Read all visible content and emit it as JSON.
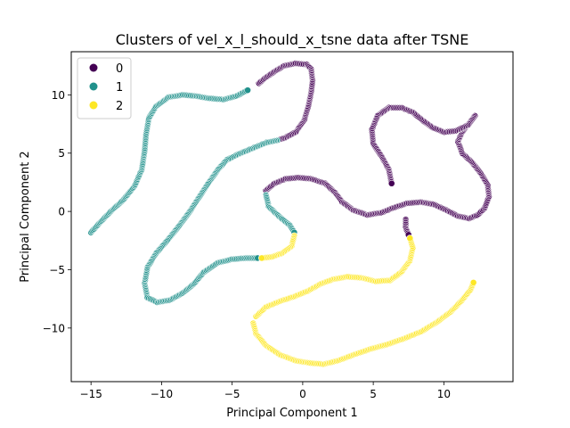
{
  "chart_data": {
    "type": "scatter",
    "title": "Clusters of vel_x_l_should_x_tsne data after TSNE",
    "xlabel": "Principal Component 1",
    "ylabel": "Principal Component 2",
    "xlim": [
      -16.4,
      14.9
    ],
    "ylim": [
      -14.6,
      13.7
    ],
    "xticks": [
      -15,
      -10,
      -5,
      0,
      5,
      10
    ],
    "yticks": [
      -10,
      -5,
      0,
      5,
      10
    ],
    "grid": false,
    "legend_position": "top-left",
    "series": [
      {
        "name": "0",
        "color": "#440154",
        "points": [
          [
            -3.1,
            11.0
          ],
          [
            -2.6,
            11.5
          ],
          [
            -2.0,
            12.0
          ],
          [
            -1.3,
            12.5
          ],
          [
            -0.5,
            12.7
          ],
          [
            0.3,
            12.6
          ],
          [
            0.6,
            12.2
          ],
          [
            0.7,
            11.2
          ],
          [
            0.6,
            10.2
          ],
          [
            0.4,
            9.0
          ],
          [
            0.1,
            7.8
          ],
          [
            -0.5,
            6.8
          ],
          [
            -1.3,
            6.3
          ],
          [
            -2.1,
            6.0
          ],
          [
            -2.6,
            1.8
          ],
          [
            -2.0,
            2.4
          ],
          [
            -1.2,
            2.8
          ],
          [
            -0.3,
            2.9
          ],
          [
            0.6,
            2.8
          ],
          [
            1.6,
            2.4
          ],
          [
            2.3,
            1.6
          ],
          [
            2.8,
            0.8
          ],
          [
            3.6,
            0.1
          ],
          [
            4.6,
            -0.3
          ],
          [
            5.6,
            -0.1
          ],
          [
            6.4,
            0.3
          ],
          [
            7.4,
            0.7
          ],
          [
            8.4,
            0.8
          ],
          [
            9.3,
            0.6
          ],
          [
            10.2,
            0.1
          ],
          [
            11.0,
            -0.4
          ],
          [
            11.8,
            -0.6
          ],
          [
            12.4,
            -0.3
          ],
          [
            12.9,
            0.3
          ],
          [
            13.2,
            1.3
          ],
          [
            13.1,
            2.3
          ],
          [
            12.6,
            3.3
          ],
          [
            12.0,
            4.2
          ],
          [
            11.3,
            5.0
          ],
          [
            11.0,
            6.0
          ],
          [
            11.3,
            6.8
          ],
          [
            11.8,
            7.6
          ],
          [
            12.2,
            8.2
          ],
          [
            11.7,
            7.4
          ],
          [
            10.8,
            6.9
          ],
          [
            10.0,
            6.8
          ],
          [
            9.2,
            7.2
          ],
          [
            8.5,
            7.8
          ],
          [
            7.8,
            8.5
          ],
          [
            7.0,
            8.9
          ],
          [
            6.1,
            8.9
          ],
          [
            5.3,
            8.2
          ],
          [
            4.9,
            7.0
          ],
          [
            5.0,
            5.8
          ],
          [
            5.6,
            4.7
          ],
          [
            6.1,
            3.6
          ],
          [
            6.3,
            2.4
          ],
          [
            7.3,
            -0.7
          ],
          [
            7.3,
            -1.4
          ],
          [
            7.5,
            -2.0
          ]
        ]
      },
      {
        "name": "1",
        "color": "#21918c",
        "points": [
          [
            -15.0,
            -1.8
          ],
          [
            -14.4,
            -1.0
          ],
          [
            -13.6,
            0.0
          ],
          [
            -12.7,
            1.0
          ],
          [
            -11.9,
            2.2
          ],
          [
            -11.4,
            3.6
          ],
          [
            -11.2,
            5.2
          ],
          [
            -11.1,
            6.6
          ],
          [
            -10.9,
            8.0
          ],
          [
            -10.4,
            9.0
          ],
          [
            -9.5,
            9.8
          ],
          [
            -8.5,
            10.0
          ],
          [
            -7.6,
            9.9
          ],
          [
            -6.6,
            9.7
          ],
          [
            -5.6,
            9.6
          ],
          [
            -4.7,
            9.9
          ],
          [
            -3.9,
            10.4
          ],
          [
            -1.8,
            6.1
          ],
          [
            -2.6,
            5.9
          ],
          [
            -3.6,
            5.4
          ],
          [
            -4.6,
            4.9
          ],
          [
            -5.4,
            4.4
          ],
          [
            -6.0,
            3.6
          ],
          [
            -6.7,
            2.4
          ],
          [
            -7.3,
            1.3
          ],
          [
            -8.0,
            0.0
          ],
          [
            -8.8,
            -1.3
          ],
          [
            -9.6,
            -2.5
          ],
          [
            -10.4,
            -3.6
          ],
          [
            -11.0,
            -4.8
          ],
          [
            -11.2,
            -6.2
          ],
          [
            -11.0,
            -7.4
          ],
          [
            -10.3,
            -7.8
          ],
          [
            -9.4,
            -7.6
          ],
          [
            -8.5,
            -7.0
          ],
          [
            -7.7,
            -6.2
          ],
          [
            -7.0,
            -5.2
          ],
          [
            -6.0,
            -4.4
          ],
          [
            -5.0,
            -4.1
          ],
          [
            -4.0,
            -4.0
          ],
          [
            -3.2,
            -4.0
          ],
          [
            -2.6,
            1.4
          ],
          [
            -2.4,
            0.4
          ],
          [
            -1.6,
            -0.5
          ],
          [
            -0.9,
            -1.2
          ],
          [
            -0.6,
            -1.8
          ]
        ]
      },
      {
        "name": "2",
        "color": "#fde725",
        "points": [
          [
            -0.6,
            -2.1
          ],
          [
            -0.8,
            -3.0
          ],
          [
            -1.5,
            -3.6
          ],
          [
            -2.2,
            -3.9
          ],
          [
            -2.9,
            -4.0
          ],
          [
            -3.3,
            -9.0
          ],
          [
            -2.6,
            -8.2
          ],
          [
            -1.6,
            -7.7
          ],
          [
            -0.6,
            -7.3
          ],
          [
            0.4,
            -6.8
          ],
          [
            1.3,
            -6.2
          ],
          [
            2.2,
            -5.8
          ],
          [
            3.2,
            -5.6
          ],
          [
            4.2,
            -5.7
          ],
          [
            5.2,
            -6.0
          ],
          [
            6.2,
            -5.9
          ],
          [
            7.0,
            -5.2
          ],
          [
            7.6,
            -4.2
          ],
          [
            7.8,
            -3.1
          ],
          [
            7.6,
            -2.3
          ],
          [
            -3.5,
            -9.6
          ],
          [
            -3.3,
            -10.5
          ],
          [
            -2.6,
            -11.5
          ],
          [
            -1.6,
            -12.3
          ],
          [
            -0.5,
            -12.8
          ],
          [
            0.5,
            -13.0
          ],
          [
            1.5,
            -13.1
          ],
          [
            2.5,
            -12.8
          ],
          [
            3.6,
            -12.3
          ],
          [
            4.8,
            -11.8
          ],
          [
            6.0,
            -11.4
          ],
          [
            7.2,
            -10.9
          ],
          [
            8.4,
            -10.3
          ],
          [
            9.5,
            -9.5
          ],
          [
            10.5,
            -8.6
          ],
          [
            11.3,
            -7.6
          ],
          [
            11.9,
            -6.7
          ],
          [
            12.1,
            -6.1
          ]
        ]
      }
    ]
  }
}
